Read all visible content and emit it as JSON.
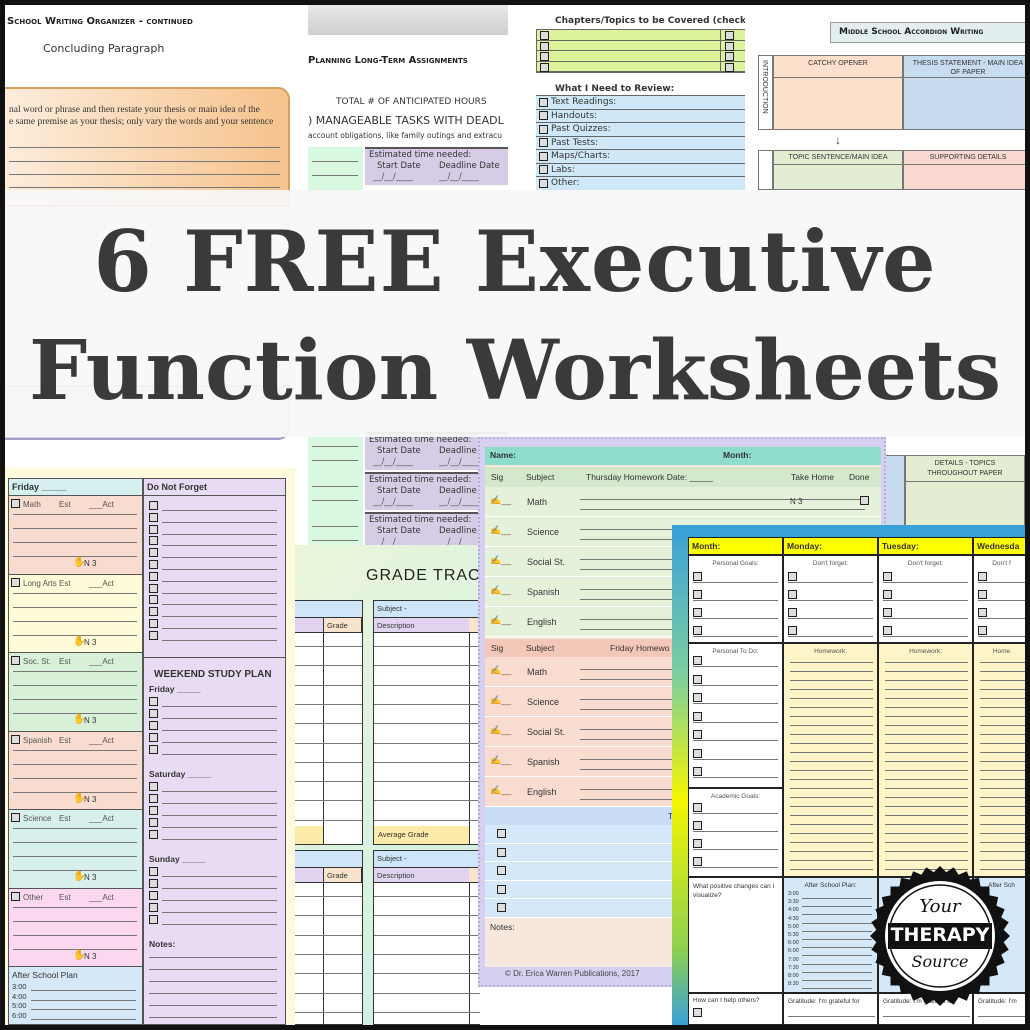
{
  "banner": {
    "line1": "6 FREE Executive",
    "line2": "Function Worksheets"
  },
  "writing_organizer": {
    "title": "School Writing Organizer - continued",
    "subtitle": "Concluding Paragraph",
    "instructions_1": "nal word or phrase and then restate your thesis or main idea of the",
    "instructions_2": "e same premise as your thesis; only vary the words and your sentence"
  },
  "long_term": {
    "title": "Planning Long-Term Assignments",
    "total_hours": "TOTAL # OF ANTICIPATED HOURS",
    "tasks": ") MANAGEABLE TASKS WITH DEADL",
    "note": "account obligations, like family outings and extracu",
    "estimated": "Estimated time needed:",
    "start_date": "Start Date",
    "deadline_date": "Deadline Date",
    "deadline_short": "Deadline",
    "date_blank": "__/__/____"
  },
  "review": {
    "chapters_title": "Chapters/Topics to be Covered (check the",
    "review_title": "What I Need to Review:",
    "items": [
      "Text Readings:",
      "Handouts:",
      "Past Quizzes:",
      "Past Tests:",
      "Maps/Charts:",
      "Labs:",
      "Other:"
    ]
  },
  "accordion": {
    "title": "Middle School Accordion Writing",
    "intro_label": "INTRODUCTION",
    "catchy": "CATCHY OPENER",
    "thesis": "THESIS STATEMENT - MAIN IDEA OF PAPER",
    "topic": "TOPIC SENTENCE/MAIN IDEA",
    "supporting": "SUPPORTING DETAILS",
    "details": "DETAILS - TOPICS THROUGHOUT PAPER"
  },
  "friday": {
    "header": "Friday _____",
    "subjects": [
      "Math",
      "Long Arts",
      "Soc. St.",
      "Spanish",
      "Science",
      "Other"
    ],
    "est": "Est",
    "act": "___Act",
    "take_home": "N 3",
    "do_not_forget": "Do Not Forget",
    "weekend": "WEEKEND STUDY PLAN",
    "days": [
      "Friday _____",
      "Saturday _____",
      "Sunday _____"
    ],
    "notes": "Notes:",
    "after_school": "After School Plan",
    "times": [
      "3:00",
      "4:00",
      "5:00",
      "6:00"
    ]
  },
  "grade_tracker": {
    "title": "GRADE TRAC",
    "subject": "Subject -",
    "description": "Description",
    "grade": "Grade",
    "average": "Average Grade"
  },
  "homework": {
    "name": "Name:",
    "month": "Month:",
    "cols": [
      "Sig",
      "Subject",
      "Thursday Homework    Date: _____",
      "Take Home",
      "Done"
    ],
    "friday_col": "Friday Homewo",
    "subjects": [
      "Math",
      "Science",
      "Social St.",
      "Spanish",
      "English"
    ],
    "take_home": "N 3",
    "todo": "To",
    "notes": "Notes:",
    "copyright": "© Dr. Erica Warren Publications, 2017"
  },
  "planner": {
    "headers": [
      "Month:",
      "Monday:",
      "Tuesday:",
      "Wednesda"
    ],
    "personal_goals": "Personal Goals:",
    "dont_forget": "Don't forget:",
    "dont_forget_cut": "Don't f",
    "personal_todo": "Personal To Do:",
    "homework": "Homework:",
    "homework_cut": "Home",
    "academic": "Academic Goals:",
    "visualize": "What positive changes can I visualize?",
    "after_school": "After School Plan:",
    "after_school_cut": "After Sch",
    "times": [
      "3:00",
      "3:30",
      "4:00",
      "4:30",
      "5:00",
      "5:30",
      "6:00",
      "6:00",
      "7:00",
      "7:30",
      "8:00",
      "8:30"
    ],
    "help": "How can I help others?",
    "gratitude": "Gratitude: I'm grateful for",
    "gratitude_cut": "Gratitude: I'm"
  },
  "logo": {
    "top": "Your",
    "middle": "THERAPY",
    "bottom": "Source"
  },
  "colors": {
    "banner_text": "#3a3a3a",
    "planner_header": "#ffff00",
    "homework_name_bar": "#8ddccc"
  }
}
